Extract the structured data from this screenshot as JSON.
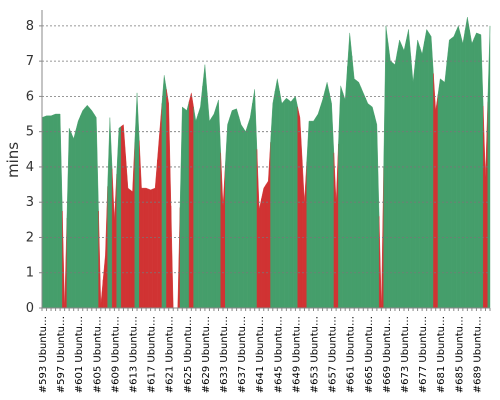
{
  "chart_data": {
    "type": "area",
    "y_label": "mins",
    "ylim": [
      0,
      8.45
    ],
    "yticks": [
      0,
      1,
      2,
      3,
      4,
      5,
      6,
      7,
      8
    ],
    "grid": true,
    "categories": [
      "#593 Ubuntu…",
      null,
      null,
      null,
      "#597 Ubuntu…",
      null,
      null,
      null,
      "#601 Ubuntu…",
      null,
      null,
      null,
      "#605 Ubuntu…",
      null,
      null,
      null,
      "#609 Ubuntu…",
      null,
      null,
      null,
      "#613 Ubuntu…",
      null,
      null,
      null,
      "#617 Ubuntu…",
      null,
      null,
      null,
      "#621 Ubuntu…",
      null,
      null,
      null,
      "#625 Ubuntu…",
      null,
      null,
      null,
      "#629 Ubuntu…",
      null,
      null,
      null,
      "#633 Ubuntu…",
      null,
      null,
      null,
      "#637 Ubuntu…",
      null,
      null,
      null,
      "#641 Ubuntu…",
      null,
      null,
      null,
      "#645 Ubuntu…",
      null,
      null,
      null,
      "#649 Ubuntu…",
      null,
      null,
      null,
      "#653 Ubuntu…",
      null,
      null,
      null,
      "#657 Ubuntu…",
      null,
      null,
      null,
      "#661 Ubuntu…",
      null,
      null,
      null,
      "#665 Ubuntu…",
      null,
      null,
      null,
      "#669 Ubuntu…",
      null,
      null,
      null,
      "#673 Ubuntu…",
      null,
      null,
      null,
      "#677 Ubuntu…",
      null,
      null,
      null,
      "#681 Ubuntu…",
      null,
      null,
      null,
      "#685 Ubuntu…",
      null,
      null,
      null,
      "#689 Ubuntu…",
      null,
      null,
      null
    ],
    "values": [
      5.4,
      5.45,
      5.45,
      5.5,
      5.5,
      0,
      5.1,
      4.8,
      5.3,
      5.6,
      5.75,
      5.6,
      5.4,
      0.1,
      1.5,
      5.4,
      2.5,
      5.1,
      5.2,
      3.4,
      3.3,
      6.1,
      3.4,
      3.4,
      3.35,
      3.4,
      5.0,
      6.6,
      5.8,
      0,
      0,
      5.7,
      5.6,
      6.1,
      5.3,
      5.7,
      6.9,
      5.3,
      5.5,
      5.9,
      2.9,
      5.2,
      5.6,
      5.65,
      5.2,
      5.0,
      5.4,
      6.2,
      2.8,
      3.4,
      3.6,
      5.8,
      6.5,
      5.8,
      5.95,
      5.85,
      6.0,
      5.4,
      3.0,
      5.3,
      5.3,
      5.5,
      5.9,
      6.4,
      5.8,
      3.0,
      6.3,
      5.9,
      7.8,
      6.5,
      6.4,
      6.1,
      5.8,
      5.7,
      5.2,
      0,
      8.0,
      7.0,
      6.9,
      7.6,
      7.3,
      7.9,
      6.4,
      7.6,
      7.2,
      7.9,
      7.7,
      5.6,
      6.5,
      6.4,
      7.6,
      7.7,
      8.0,
      7.5,
      8.25,
      7.5,
      7.8,
      7.75,
      3.7,
      8.0
    ],
    "colors": [
      "#459e6b",
      "#459e6b",
      "#459e6b",
      "#459e6b",
      "#459e6b",
      "#d03333",
      "#459e6b",
      "#459e6b",
      "#459e6b",
      "#459e6b",
      "#459e6b",
      "#459e6b",
      "#459e6b",
      "#d03333",
      "#d03333",
      "#459e6b",
      "#d03333",
      "#459e6b",
      "#d03333",
      "#d03333",
      "#d03333",
      "#459e6b",
      "#d03333",
      "#d03333",
      "#d03333",
      "#d03333",
      "#d03333",
      "#459e6b",
      "#d03333",
      "#d03333",
      "#d03333",
      "#459e6b",
      "#459e6b",
      "#d03333",
      "#459e6b",
      "#459e6b",
      "#459e6b",
      "#459e6b",
      "#459e6b",
      "#459e6b",
      "#d03333",
      "#459e6b",
      "#459e6b",
      "#459e6b",
      "#459e6b",
      "#459e6b",
      "#459e6b",
      "#459e6b",
      "#d03333",
      "#d03333",
      "#d03333",
      "#459e6b",
      "#459e6b",
      "#459e6b",
      "#459e6b",
      "#459e6b",
      "#459e6b",
      "#d03333",
      "#d03333",
      "#459e6b",
      "#459e6b",
      "#459e6b",
      "#459e6b",
      "#459e6b",
      "#459e6b",
      "#d03333",
      "#459e6b",
      "#459e6b",
      "#459e6b",
      "#459e6b",
      "#459e6b",
      "#459e6b",
      "#459e6b",
      "#459e6b",
      "#459e6b",
      "#d03333",
      "#459e6b",
      "#459e6b",
      "#459e6b",
      "#459e6b",
      "#459e6b",
      "#459e6b",
      "#459e6b",
      "#459e6b",
      "#459e6b",
      "#459e6b",
      "#459e6b",
      "#d03333",
      "#459e6b",
      "#459e6b",
      "#459e6b",
      "#459e6b",
      "#459e6b",
      "#459e6b",
      "#459e6b",
      "#459e6b",
      "#459e6b",
      "#459e6b",
      "#d03333",
      "#459e6b"
    ]
  }
}
